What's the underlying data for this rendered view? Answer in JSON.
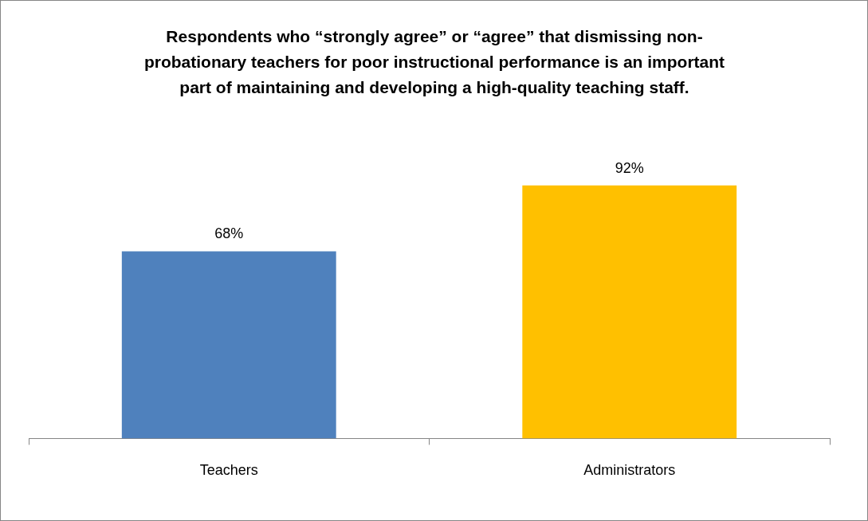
{
  "chart_data": {
    "type": "bar",
    "title": "Respondents who “strongly agree” or “agree” that dismissing non-probationary teachers for poor instructional performance is an important part of maintaining and developing a high-quality teaching staff.",
    "categories": [
      "Teachers",
      "Administrators"
    ],
    "values": [
      68,
      92
    ],
    "colors": [
      "#4f81bd",
      "#ffc000"
    ],
    "value_labels": [
      "68%",
      "92%"
    ],
    "tick_labels": "x",
    "grid": false,
    "legend": false
  }
}
